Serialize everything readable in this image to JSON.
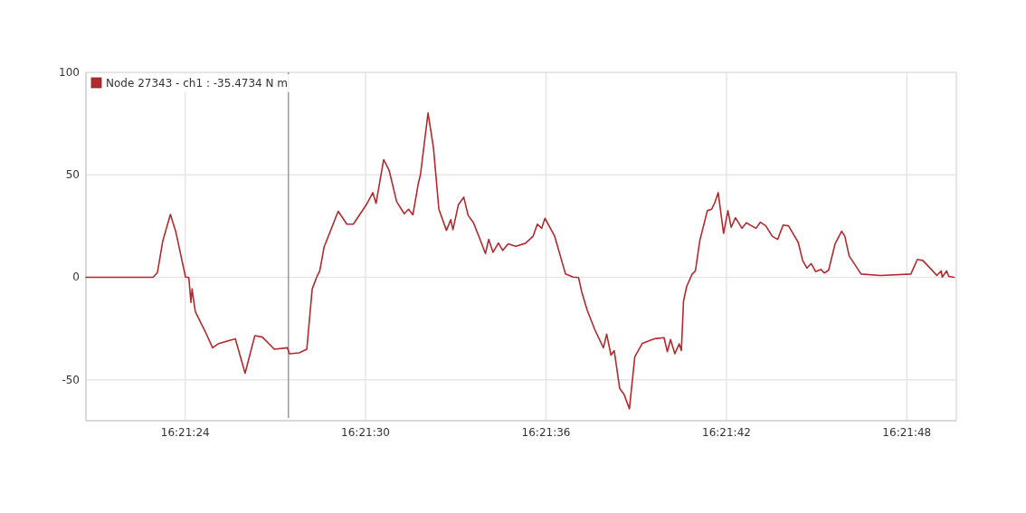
{
  "chart_data": {
    "type": "line",
    "x": [
      16.35575,
      16.35637,
      16.35641,
      16.35646,
      16.35653,
      16.35658,
      16.35667,
      16.3567,
      16.35672,
      16.35673,
      16.35676,
      16.35685,
      16.35692,
      16.35697,
      16.35713,
      16.35722,
      16.35731,
      16.35738,
      16.35749,
      16.35761,
      16.35763,
      16.35772,
      16.35779,
      16.35784,
      16.35788,
      16.35791,
      16.35795,
      16.35808,
      16.35816,
      16.35822,
      16.35834,
      16.3584,
      16.35843,
      16.3585,
      16.35855,
      16.35862,
      16.35869,
      16.35873,
      16.35877,
      16.35882,
      16.35884,
      16.35891,
      16.35896,
      16.35901,
      16.35908,
      16.35912,
      16.35914,
      16.35919,
      16.35924,
      16.35928,
      16.35933,
      16.35939,
      16.35944,
      16.35947,
      16.35951,
      16.35956,
      16.3596,
      16.35965,
      16.35972,
      16.35981,
      16.35988,
      16.35992,
      16.35996,
      16.35999,
      16.36008,
      16.36018,
      16.36025,
      16.3603,
      16.36033,
      16.36038,
      16.36045,
      16.36053,
      16.36056,
      16.3606,
      16.36063,
      16.36068,
      16.36072,
      16.36077,
      16.36082,
      16.36089,
      16.361,
      16.36109,
      16.36112,
      16.36115,
      16.36119,
      16.36123,
      16.36125,
      16.36127,
      16.3613,
      16.36135,
      16.36138,
      16.36142,
      16.36149,
      16.36153,
      16.36156,
      16.36159,
      16.36164,
      16.36168,
      16.36171,
      16.36175,
      16.36181,
      16.36185,
      16.36194,
      16.36198,
      16.36203,
      16.36209,
      16.36214,
      16.36219,
      16.36224,
      16.36233,
      16.36237,
      16.36241,
      16.36245,
      16.36249,
      16.36254,
      16.36257,
      16.36261,
      16.36267,
      16.36273,
      16.36276,
      16.3628,
      16.36291,
      16.36309,
      16.36337,
      16.36343,
      16.36348,
      16.36356,
      16.36361,
      16.36365,
      16.36366,
      16.3637,
      16.36372,
      16.36377
    ],
    "series": [
      {
        "name": "Node 27343 - ch1 : -35.4734 N m",
        "color": "#b22a2f",
        "values": [
          0,
          0,
          2.3,
          17.8,
          30.7,
          22.2,
          0.1,
          -0.1,
          -12.3,
          -5.7,
          -16.7,
          -26.3,
          -34.4,
          -32.5,
          -30,
          -46.8,
          -28.5,
          -29.2,
          -35.1,
          -34.4,
          -37.3,
          -36.9,
          -35.1,
          -5.7,
          -0.1,
          3.1,
          14.8,
          32.2,
          25.9,
          25.9,
          35.4,
          41.3,
          36.1,
          57.4,
          52.3,
          36.9,
          31,
          33.2,
          30.5,
          45.7,
          50.1,
          80.2,
          63.3,
          33.2,
          22.9,
          28.1,
          23.2,
          35.4,
          39.1,
          30.3,
          26.6,
          18.5,
          11.6,
          18.5,
          12.2,
          16.7,
          13.1,
          16.3,
          15.1,
          16.6,
          20,
          25.9,
          23.9,
          28.8,
          20,
          1.6,
          0.1,
          -0.1,
          -7.2,
          -16,
          -25.5,
          -34.4,
          -27.8,
          -38,
          -35.8,
          -54.2,
          -57.1,
          -64.2,
          -38.8,
          -32.2,
          -30,
          -29.5,
          -36.3,
          -30.4,
          -37.3,
          -32.5,
          -35.8,
          -11.6,
          -4.3,
          1.6,
          3.1,
          17.8,
          32.5,
          33.2,
          36.6,
          41.3,
          21.4,
          32.5,
          24.4,
          29.1,
          23.9,
          26.6,
          23.9,
          26.9,
          25.1,
          20,
          18.5,
          25.5,
          25.1,
          17,
          8.2,
          4.5,
          6.7,
          2.8,
          3.8,
          2.1,
          3.4,
          16.3,
          22.5,
          20,
          10.4,
          1.6,
          0.9,
          1.6,
          8.7,
          8.2,
          3.8,
          0.9,
          3.1,
          0.1,
          3.1,
          0.4,
          0
        ]
      }
    ],
    "xlim": [
      16.35575,
      16.36379
    ],
    "xticks": [
      {
        "value": 16.356667,
        "label": "16:21:24"
      },
      {
        "value": 16.358333,
        "label": "16:21:30"
      },
      {
        "value": 16.36,
        "label": "16:21:36"
      },
      {
        "value": 16.361667,
        "label": "16:21:42"
      },
      {
        "value": 16.363333,
        "label": "16:21:48"
      }
    ],
    "ylim": [
      -70,
      100
    ],
    "yticks": [
      -50,
      0,
      50,
      100
    ],
    "grid": true,
    "legend": "top left",
    "ref_lines": [
      {
        "axis": "x",
        "value": 16.35762,
        "color": "#999999"
      }
    ]
  }
}
